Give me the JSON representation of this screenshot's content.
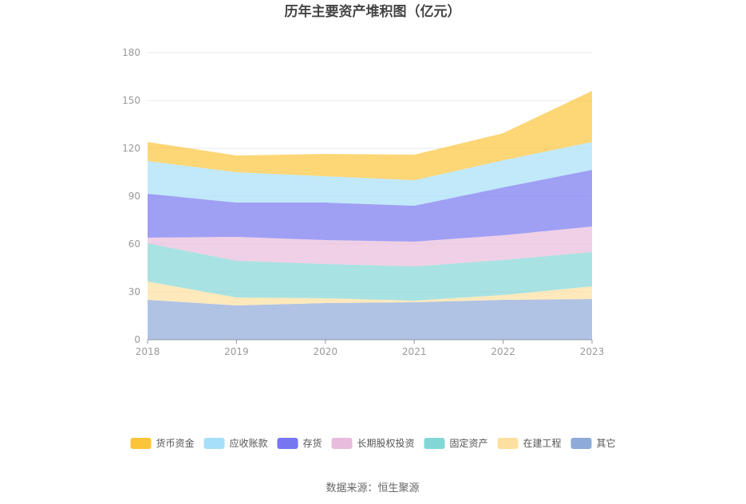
{
  "chart_data": {
    "type": "area",
    "stacked": true,
    "title": "历年主要资产堆积图（亿元）",
    "x": [
      "2018",
      "2019",
      "2020",
      "2021",
      "2022",
      "2023"
    ],
    "ylim": [
      0,
      180
    ],
    "yticks": [
      0,
      30,
      60,
      90,
      120,
      150,
      180
    ],
    "grid": true,
    "legend_position": "bottom",
    "series": [
      {
        "name": "其它",
        "color": "#8eaad8",
        "values": [
          25,
          21.5,
          23,
          23.5,
          25,
          25.5
        ]
      },
      {
        "name": "在建工程",
        "color": "#fde0a0",
        "values": [
          11.5,
          5,
          3,
          1,
          3,
          8
        ]
      },
      {
        "name": "固定资产",
        "color": "#84d6d6",
        "values": [
          24,
          23,
          21.5,
          21.5,
          22,
          21.5
        ]
      },
      {
        "name": "长期股权投资",
        "color": "#e8bcdc",
        "values": [
          3.5,
          15,
          15,
          15.5,
          15.5,
          16
        ]
      },
      {
        "name": "存货",
        "color": "#7676f0",
        "values": [
          27.5,
          21.5,
          23.5,
          22.5,
          30,
          35.5
        ]
      },
      {
        "name": "应收账款",
        "color": "#a6e0f8",
        "values": [
          20.5,
          19,
          16.5,
          16,
          17,
          17.5
        ]
      },
      {
        "name": "货币资金",
        "color": "#fcc43c",
        "values": [
          12,
          10.5,
          14,
          16,
          17,
          32
        ]
      }
    ],
    "legend_order": [
      "货币资金",
      "应收账款",
      "存货",
      "长期股权投资",
      "固定资产",
      "在建工程",
      "其它"
    ],
    "source": "数据来源：恒生聚源"
  }
}
